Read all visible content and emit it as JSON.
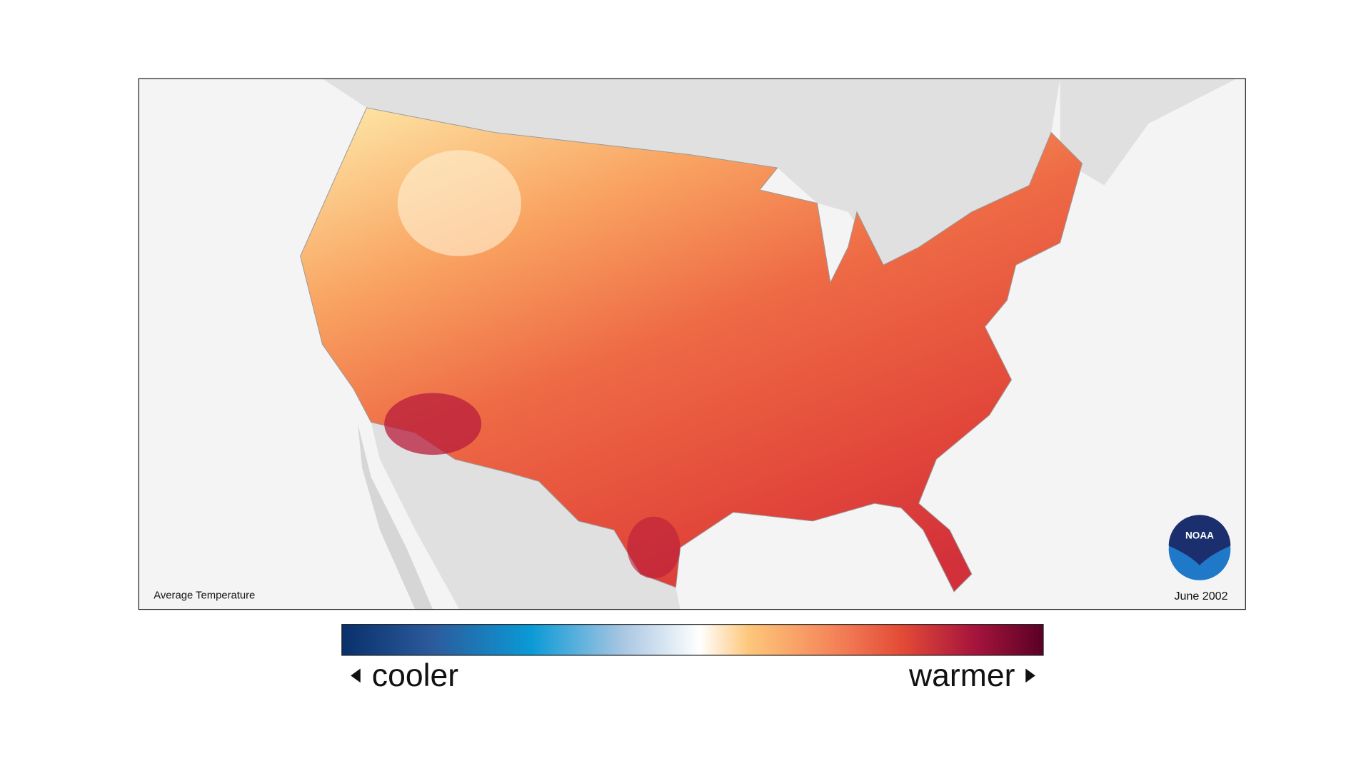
{
  "map": {
    "title": "Average Temperature",
    "date": "June 2002",
    "logo": "NOAA"
  },
  "legend": {
    "low_label": "cooler",
    "high_label": "warmer"
  }
}
